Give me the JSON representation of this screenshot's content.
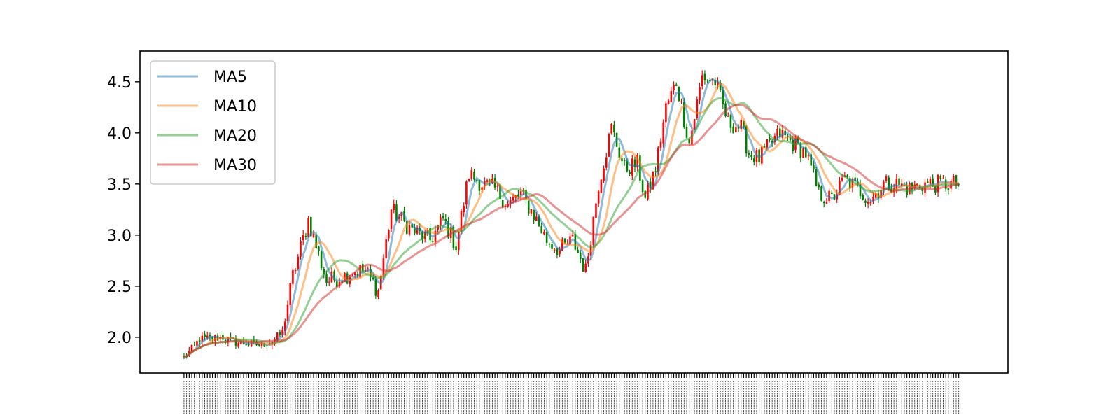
{
  "chart_data": {
    "type": "line",
    "title": "",
    "xlabel": "",
    "ylabel": "",
    "ylim": [
      1.65,
      4.8
    ],
    "xlim": [
      -17,
      318
    ],
    "y_ticks": [
      2.0,
      2.5,
      3.0,
      3.5,
      4.0,
      4.5
    ],
    "y_tick_labels": [
      "2.0",
      "2.5",
      "3.0",
      "3.5",
      "4.0",
      "4.5"
    ],
    "x_tick_labels_note": "dense unreadable date labels rotated vertically",
    "grid": false,
    "legend_position": "upper-left",
    "candles": {
      "up_color": "#ff0000",
      "down_color": "#008000",
      "count": 300,
      "anchor_x": [
        0,
        6,
        15,
        20,
        28,
        30,
        35,
        38,
        42,
        48,
        55,
        62,
        66,
        70,
        75,
        80,
        88,
        95,
        100,
        105,
        110,
        115,
        120,
        125,
        130,
        135,
        140,
        145,
        150,
        155,
        160,
        165,
        170,
        175,
        178,
        182,
        186,
        190,
        195,
        200,
        205,
        210,
        215,
        218,
        222,
        225,
        230,
        235,
        240,
        245,
        250,
        255,
        260,
        265,
        270,
        275,
        280,
        285,
        290,
        295,
        299
      ],
      "anchor_close": [
        1.8,
        1.98,
        2.0,
        1.95,
        1.93,
        1.92,
        1.98,
        2.05,
        2.6,
        3.15,
        2.55,
        2.6,
        2.65,
        2.65,
        2.45,
        3.25,
        3.05,
        2.95,
        3.15,
        2.9,
        3.6,
        3.5,
        3.45,
        3.3,
        3.4,
        3.2,
        2.95,
        2.85,
        2.95,
        2.65,
        3.5,
        4.05,
        3.65,
        3.7,
        3.35,
        3.65,
        4.25,
        4.5,
        3.9,
        4.55,
        4.5,
        4.1,
        4.05,
        3.8,
        3.75,
        3.85,
        4.0,
        3.9,
        3.8,
        3.4,
        3.35,
        3.55,
        3.45,
        3.35,
        3.5,
        3.5,
        3.45,
        3.5,
        3.5,
        3.5,
        3.5
      ]
    },
    "series": [
      {
        "name": "MA5",
        "window": 5,
        "color": "#1f77b4"
      },
      {
        "name": "MA10",
        "window": 10,
        "color": "#ff7f0e"
      },
      {
        "name": "MA20",
        "window": 20,
        "color": "#2ca02c"
      },
      {
        "name": "MA30",
        "window": 30,
        "color": "#d62728"
      }
    ]
  }
}
